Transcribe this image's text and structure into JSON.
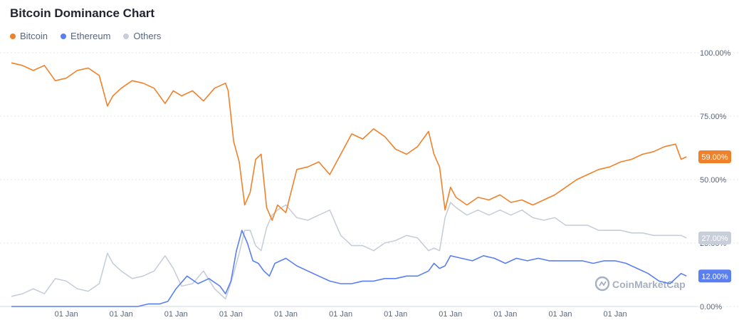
{
  "chart_data": {
    "type": "line",
    "title": "Bitcoin Dominance Chart",
    "xlabel": "",
    "ylabel": "",
    "ylim": [
      0,
      100
    ],
    "y_ticks": [
      "100.00%",
      "75.00%",
      "50.00%",
      "25.00%",
      "0.00%"
    ],
    "y_tick_values": [
      100,
      75,
      50,
      25,
      0
    ],
    "x_ticks": [
      "01 Jan",
      "01 Jan",
      "01 Jan",
      "01 Jan",
      "01 Jan",
      "01 Jan",
      "01 Jan",
      "01 Jan",
      "01 Jan",
      "01 Jan",
      "01 Jan"
    ],
    "x_tick_positions": [
      1,
      2,
      3,
      4,
      5,
      6,
      7,
      8,
      9,
      10,
      11
    ],
    "xlim": [
      0,
      12.4
    ],
    "grid": true,
    "legend_position": "top-left",
    "watermark": "CoinMarketCap",
    "series": [
      {
        "name": "Bitcoin",
        "color": "#f0812a",
        "last_label": "59.00%",
        "x": [
          0,
          0.2,
          0.4,
          0.6,
          0.8,
          1.0,
          1.2,
          1.4,
          1.6,
          1.75,
          1.85,
          2.0,
          2.2,
          2.4,
          2.6,
          2.8,
          2.95,
          3.1,
          3.3,
          3.5,
          3.7,
          3.9,
          3.95,
          4.05,
          4.15,
          4.25,
          4.35,
          4.45,
          4.55,
          4.65,
          4.75,
          4.85,
          5.0,
          5.2,
          5.4,
          5.6,
          5.8,
          6.0,
          6.2,
          6.4,
          6.6,
          6.8,
          7.0,
          7.2,
          7.4,
          7.6,
          7.7,
          7.8,
          7.9,
          8.0,
          8.1,
          8.3,
          8.5,
          8.7,
          8.9,
          9.1,
          9.3,
          9.5,
          9.7,
          9.9,
          10.1,
          10.3,
          10.5,
          10.7,
          10.9,
          11.1,
          11.3,
          11.5,
          11.7,
          11.9,
          12.1,
          12.2,
          12.3
        ],
        "values": [
          96,
          95,
          93,
          95,
          89,
          90,
          93,
          94,
          91,
          79,
          83,
          86,
          89,
          88,
          86,
          80,
          85,
          83,
          85,
          81,
          86,
          88,
          85,
          65,
          57,
          40,
          45,
          58,
          60,
          39,
          34,
          40,
          37,
          54,
          55,
          57,
          52,
          60,
          68,
          66,
          70,
          67,
          62,
          60,
          63,
          69,
          60,
          55,
          38,
          47,
          43,
          40,
          43,
          42,
          44,
          41,
          42,
          40,
          42,
          44,
          47,
          50,
          52,
          54,
          55,
          57,
          58,
          60,
          61,
          63,
          64,
          58,
          59
        ]
      },
      {
        "name": "Ethereum",
        "color": "#5a7ff0",
        "last_label": "12.00%",
        "x": [
          0,
          0.5,
          1.0,
          1.5,
          2.0,
          2.3,
          2.5,
          2.7,
          2.85,
          3.0,
          3.2,
          3.4,
          3.6,
          3.8,
          3.9,
          4.0,
          4.1,
          4.2,
          4.3,
          4.4,
          4.5,
          4.6,
          4.7,
          4.8,
          5.0,
          5.2,
          5.4,
          5.6,
          5.8,
          6.0,
          6.2,
          6.4,
          6.6,
          6.8,
          7.0,
          7.2,
          7.4,
          7.6,
          7.7,
          7.8,
          7.9,
          8.0,
          8.2,
          8.4,
          8.6,
          8.8,
          9.0,
          9.2,
          9.4,
          9.6,
          9.8,
          10.0,
          10.2,
          10.4,
          10.6,
          10.8,
          11.0,
          11.2,
          11.4,
          11.6,
          11.8,
          12.0,
          12.2,
          12.3
        ],
        "values": [
          0,
          0,
          0,
          0,
          0,
          0,
          1,
          1,
          2,
          7,
          12,
          9,
          11,
          8,
          5,
          10,
          22,
          30,
          25,
          18,
          17,
          14,
          12,
          17,
          19,
          16,
          14,
          12,
          10,
          9,
          9,
          10,
          10,
          11,
          11,
          12,
          12,
          14,
          17,
          15,
          16,
          20,
          19,
          18,
          20,
          19,
          17,
          19,
          18,
          19,
          18,
          18,
          18,
          18,
          17,
          18,
          18,
          17,
          15,
          13,
          10,
          9,
          13,
          12
        ]
      },
      {
        "name": "Others",
        "color": "#c8ced9",
        "last_label": "27.00%",
        "x": [
          0,
          0.2,
          0.4,
          0.6,
          0.8,
          1.0,
          1.2,
          1.4,
          1.6,
          1.75,
          1.85,
          2.0,
          2.2,
          2.4,
          2.6,
          2.8,
          2.95,
          3.1,
          3.3,
          3.5,
          3.7,
          3.9,
          3.95,
          4.05,
          4.15,
          4.25,
          4.35,
          4.45,
          4.55,
          4.65,
          4.75,
          4.85,
          5.0,
          5.2,
          5.4,
          5.6,
          5.8,
          6.0,
          6.2,
          6.4,
          6.6,
          6.8,
          7.0,
          7.2,
          7.4,
          7.6,
          7.7,
          7.8,
          7.9,
          8.0,
          8.1,
          8.3,
          8.5,
          8.7,
          8.9,
          9.1,
          9.3,
          9.5,
          9.7,
          9.9,
          10.1,
          10.3,
          10.5,
          10.7,
          10.9,
          11.1,
          11.3,
          11.5,
          11.7,
          11.9,
          12.1,
          12.2,
          12.3
        ],
        "values": [
          4,
          5,
          7,
          5,
          11,
          10,
          7,
          6,
          9,
          21,
          17,
          14,
          11,
          12,
          14,
          20,
          15,
          8,
          9,
          14,
          7,
          3,
          6,
          13,
          21,
          30,
          30,
          24,
          22,
          31,
          36,
          38,
          40,
          35,
          34,
          36,
          38,
          28,
          24,
          24,
          22,
          25,
          26,
          28,
          27,
          22,
          23,
          22,
          35,
          41,
          39,
          36,
          38,
          36,
          38,
          36,
          38,
          35,
          34,
          35,
          32,
          32,
          32,
          30,
          30,
          30,
          29,
          29,
          28,
          28,
          28,
          28,
          27
        ]
      }
    ]
  }
}
